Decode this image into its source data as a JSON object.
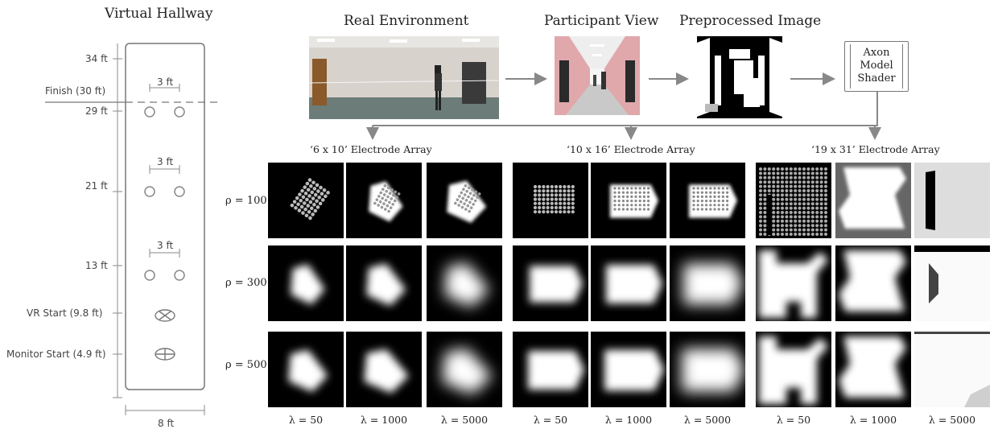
{
  "hallway": {
    "title": "Virtual Hallway",
    "dim_34": "34 ft",
    "finish": "Finish (30 ft)",
    "dim_29": "29 ft",
    "dim_21": "21 ft",
    "dim_13": "13 ft",
    "gap_label": "3 ft",
    "vr_start": "VR Start (9.8 ft)",
    "monitor_start": "Monitor Start (4.9 ft)",
    "width": "8 ft"
  },
  "pipeline": {
    "real_env": "Real Environment",
    "participant_view": "Participant View",
    "preprocessed": "Preprocessed Image",
    "shader_line1": "Axon",
    "shader_line2": "Model",
    "shader_line3": "Shader"
  },
  "grid": {
    "arrays": [
      "‘6 x 10’ Electrode Array",
      "‘10 x 16’ Electrode Array",
      "‘19 x 31’ Electrode Array"
    ],
    "rho": [
      "ρ = 100",
      "ρ = 300",
      "ρ = 500"
    ],
    "lambda": [
      "λ = 50",
      "λ = 1000",
      "λ = 5000"
    ]
  }
}
